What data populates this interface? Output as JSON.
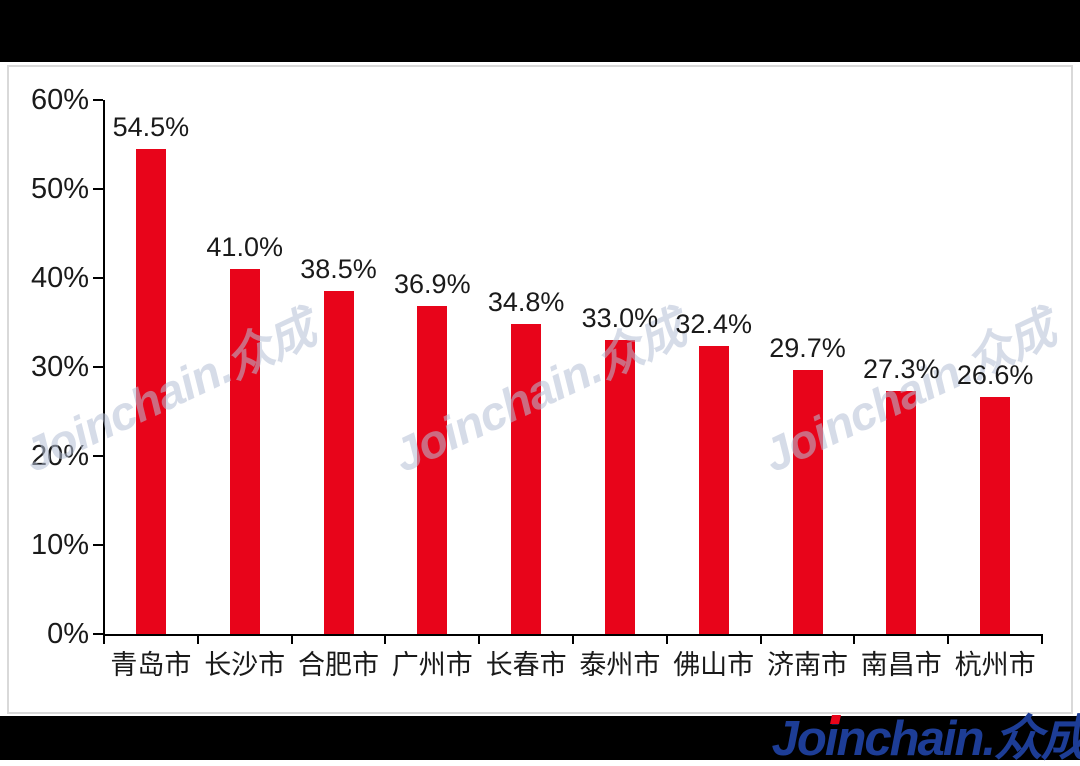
{
  "colors": {
    "top_bar": "#000000",
    "bottom_bar": "#000000",
    "panel_border": "#d9d9d9",
    "bar": "#e8041a",
    "axis": "#000000",
    "label_text": "#1a1a1a",
    "watermark": "#b6c0d6",
    "logo_blue": "#1d3d96",
    "logo_dot_red": "#e8041a"
  },
  "chart_data": {
    "type": "bar",
    "title": "",
    "xlabel": "",
    "ylabel": "",
    "categories": [
      "青岛市",
      "长沙市",
      "合肥市",
      "广州市",
      "长春市",
      "泰州市",
      "佛山市",
      "济南市",
      "南昌市",
      "杭州市"
    ],
    "values": [
      54.5,
      41.0,
      38.5,
      36.9,
      34.8,
      33.0,
      32.4,
      29.7,
      27.3,
      26.6
    ],
    "value_labels": [
      "54.5%",
      "41.0%",
      "38.5%",
      "36.9%",
      "34.8%",
      "33.0%",
      "32.4%",
      "29.7%",
      "27.3%",
      "26.6%"
    ],
    "y_tick_labels": [
      "60%",
      "50%",
      "40%",
      "30%",
      "20%",
      "10%",
      "0%"
    ],
    "ylim": [
      0,
      60
    ],
    "grid": false,
    "legend": null,
    "bar_color": "#e8041a"
  },
  "watermark": {
    "text": "Joinchain.众成"
  },
  "footer": {
    "logo_part1": "Jo",
    "logo_part2": "i",
    "logo_part3": "nchain.众成"
  }
}
